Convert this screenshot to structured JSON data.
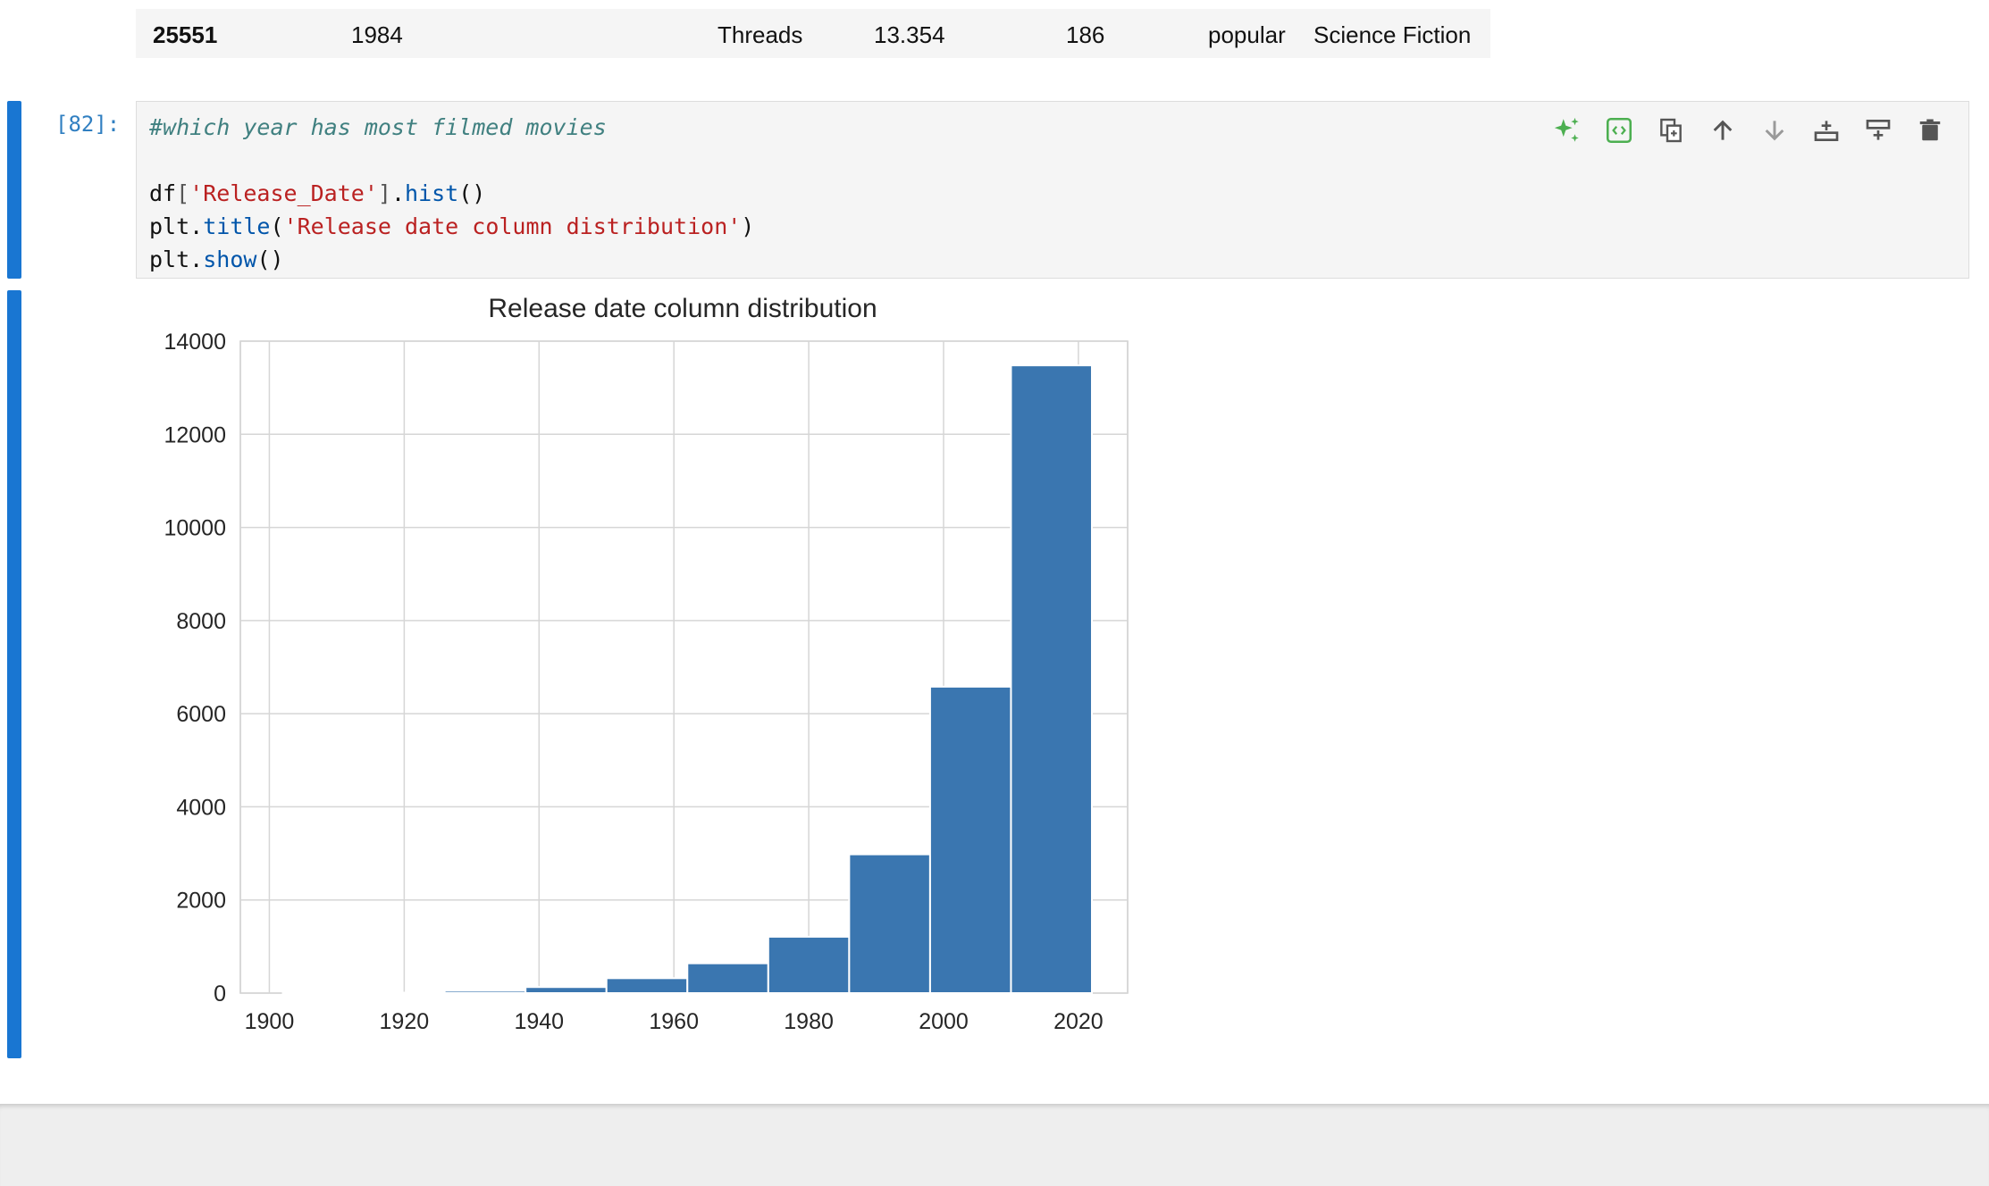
{
  "table_row": {
    "index": "25551",
    "release_date": "1984",
    "title": "Threads",
    "popularity": "13.354",
    "vote_count": "186",
    "vote_average": "popular",
    "genre": "Science Fiction"
  },
  "cell": {
    "prompt": "[82]:",
    "code": {
      "comment": "#which year has most filmed movies",
      "l2_var": "df",
      "l2_open": "[",
      "l2_str": "'Release_Date'",
      "l2_close": "]",
      "l2_dot": ".",
      "l2_fn": "hist",
      "l2_paren": "()",
      "l3_var": "plt",
      "l3_dot": ".",
      "l3_fn": "title",
      "l3_open": "(",
      "l3_str": "'Release date column distribution'",
      "l3_close": ")",
      "l4_var": "plt",
      "l4_dot": ".",
      "l4_fn": "show",
      "l4_paren": "()"
    },
    "toolbar": [
      {
        "icon": "sparkle-icon",
        "color": "#4caf50"
      },
      {
        "icon": "code-brackets-icon",
        "color": "#4caf50"
      },
      {
        "icon": "duplicate-icon",
        "color": "#555555"
      },
      {
        "icon": "arrow-up-icon",
        "color": "#555555"
      },
      {
        "icon": "arrow-down-icon",
        "color": "#999999"
      },
      {
        "icon": "insert-below-icon",
        "color": "#555555"
      },
      {
        "icon": "insert-above-icon",
        "color": "#555555"
      },
      {
        "icon": "trash-icon",
        "color": "#555555"
      }
    ]
  },
  "colors": {
    "accent": "#1976d2",
    "bar": "#3a76b0"
  },
  "chart_data": {
    "type": "bar",
    "title": "Release date column distribution",
    "xlabel": "",
    "ylabel": "",
    "x_ticks": [
      "1900",
      "1920",
      "1940",
      "1960",
      "1980",
      "2000",
      "2020"
    ],
    "y_ticks": [
      "0",
      "2000",
      "4000",
      "6000",
      "8000",
      "10000",
      "12000",
      "14000"
    ],
    "xlim": [
      1895.7,
      2027.3
    ],
    "ylim": [
      0,
      14000
    ],
    "grid": true,
    "bin_edges": [
      1902,
      1914,
      1926,
      1938,
      1950,
      1962,
      1974,
      1986,
      1998,
      2010,
      2022
    ],
    "values": [
      3,
      10,
      50,
      130,
      320,
      640,
      1210,
      2980,
      6580,
      13480
    ]
  }
}
